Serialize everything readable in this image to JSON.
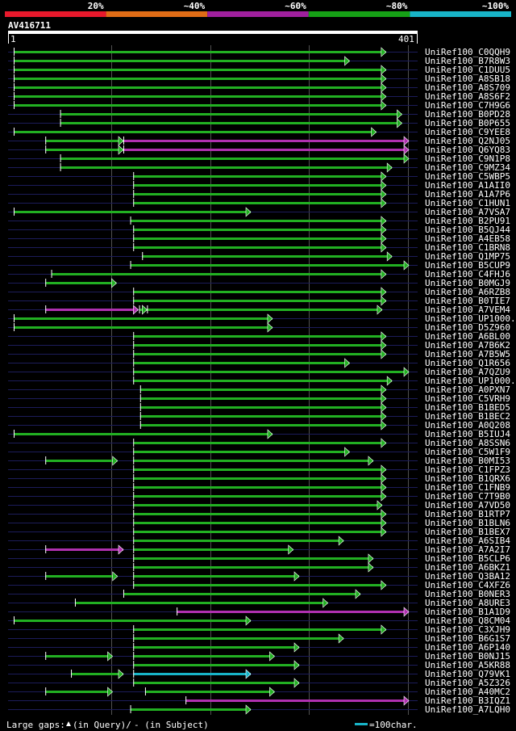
{
  "chart_data": {
    "type": "alignment-overview",
    "query_name": "AV416711",
    "query_start": "1",
    "query_end": "401",
    "query_length": 401,
    "identity_scale": [
      {
        "label": "20%",
        "color": "#e8192c"
      },
      {
        "label": "~40%",
        "color": "#e06c16"
      },
      {
        "label": "~60%",
        "color": "#a0209e"
      },
      {
        "label": "~80%",
        "color": "#16a016"
      },
      {
        "label": "~100%",
        "color": "#18b4c8"
      }
    ],
    "hits": [
      {
        "name": "UniRef100_C0QQH9",
        "segments": [
          [
            1,
            378,
            "green"
          ]
        ]
      },
      {
        "name": "UniRef100_B7R8W3",
        "segments": [
          [
            1,
            341,
            "green"
          ]
        ]
      },
      {
        "name": "UniRef100_C1DUU5",
        "segments": [
          [
            1,
            378,
            "green"
          ]
        ]
      },
      {
        "name": "UniRef100_A8SB18",
        "segments": [
          [
            1,
            378,
            "green"
          ]
        ]
      },
      {
        "name": "UniRef100_A8S709",
        "segments": [
          [
            1,
            378,
            "green"
          ]
        ]
      },
      {
        "name": "UniRef100_A8S6F2",
        "segments": [
          [
            1,
            378,
            "green"
          ]
        ]
      },
      {
        "name": "UniRef100_C7H9G6",
        "segments": [
          [
            1,
            378,
            "green"
          ]
        ]
      },
      {
        "name": "UniRef100_B0PD28",
        "segments": [
          [
            48,
            394,
            "green"
          ]
        ]
      },
      {
        "name": "UniRef100_B0P655",
        "segments": [
          [
            48,
            394,
            "green"
          ]
        ]
      },
      {
        "name": "UniRef100_C9YEE8",
        "segments": [
          [
            1,
            368,
            "green"
          ]
        ]
      },
      {
        "name": "UniRef100_Q2NJ05",
        "segments": [
          [
            33,
            112,
            "green"
          ],
          [
            112,
            401,
            "purple"
          ]
        ]
      },
      {
        "name": "UniRef100_Q6YQ83",
        "segments": [
          [
            33,
            112,
            "green"
          ],
          [
            112,
            401,
            "purple"
          ]
        ]
      },
      {
        "name": "UniRef100_C9N1P8",
        "segments": [
          [
            48,
            401,
            "green"
          ]
        ]
      },
      {
        "name": "UniRef100_C9MZ34",
        "segments": [
          [
            48,
            384,
            "green"
          ]
        ]
      },
      {
        "name": "UniRef100_C5WBP5",
        "segments": [
          [
            122,
            378,
            "green"
          ]
        ]
      },
      {
        "name": "UniRef100_A1AII0",
        "segments": [
          [
            122,
            378,
            "green"
          ]
        ]
      },
      {
        "name": "UniRef100_A1A7P6",
        "segments": [
          [
            122,
            378,
            "green"
          ]
        ]
      },
      {
        "name": "UniRef100_C1HUN1",
        "segments": [
          [
            122,
            378,
            "green"
          ]
        ]
      },
      {
        "name": "UniRef100_A7VSA7",
        "segments": [
          [
            1,
            241,
            "green"
          ]
        ]
      },
      {
        "name": "UniRef100_B2PU91",
        "segments": [
          [
            119,
            378,
            "green"
          ]
        ]
      },
      {
        "name": "UniRef100_B5QJ44",
        "segments": [
          [
            122,
            378,
            "green"
          ]
        ]
      },
      {
        "name": "UniRef100_A4EB58",
        "segments": [
          [
            122,
            378,
            "green"
          ]
        ]
      },
      {
        "name": "UniRef100_C1BRN8",
        "segments": [
          [
            122,
            378,
            "green"
          ]
        ]
      },
      {
        "name": "UniRef100_Q1MP75",
        "segments": [
          [
            131,
            384,
            "green"
          ]
        ]
      },
      {
        "name": "UniRef100_B5CUP9",
        "segments": [
          [
            119,
            401,
            "green"
          ]
        ]
      },
      {
        "name": "UniRef100_C4FHJ6",
        "segments": [
          [
            39,
            378,
            "green"
          ]
        ]
      },
      {
        "name": "UniRef100_B0MGJ9",
        "segments": [
          [
            33,
            105,
            "green"
          ]
        ]
      },
      {
        "name": "UniRef100_A6RZB8",
        "segments": [
          [
            122,
            378,
            "green"
          ]
        ]
      },
      {
        "name": "UniRef100_B0TIE7",
        "segments": [
          [
            122,
            378,
            "green"
          ]
        ]
      },
      {
        "name": "UniRef100_A7VEM4",
        "segments": [
          [
            33,
            127,
            "purple"
          ],
          [
            128,
            136,
            "green"
          ],
          [
            136,
            374,
            "green"
          ]
        ]
      },
      {
        "name": "UniRef100_UP1000..",
        "segments": [
          [
            1,
            263,
            "green"
          ]
        ]
      },
      {
        "name": "UniRef100_D5Z960",
        "segments": [
          [
            1,
            263,
            "green"
          ]
        ]
      },
      {
        "name": "UniRef100_A6BL00",
        "segments": [
          [
            122,
            378,
            "green"
          ]
        ]
      },
      {
        "name": "UniRef100_A7B6K2",
        "segments": [
          [
            122,
            378,
            "green"
          ]
        ]
      },
      {
        "name": "UniRef100_A7B5W5",
        "segments": [
          [
            122,
            378,
            "green"
          ]
        ]
      },
      {
        "name": "UniRef100_Q1R656",
        "segments": [
          [
            122,
            341,
            "green"
          ]
        ]
      },
      {
        "name": "UniRef100_A7QZU9",
        "segments": [
          [
            122,
            401,
            "green"
          ]
        ]
      },
      {
        "name": "UniRef100_UP1000..",
        "segments": [
          [
            122,
            384,
            "green"
          ]
        ]
      },
      {
        "name": "UniRef100_A0PXN7",
        "segments": [
          [
            129,
            378,
            "green"
          ]
        ]
      },
      {
        "name": "UniRef100_C5VRH9",
        "segments": [
          [
            129,
            378,
            "green"
          ]
        ]
      },
      {
        "name": "UniRef100_B1BED5",
        "segments": [
          [
            129,
            378,
            "green"
          ]
        ]
      },
      {
        "name": "UniRef100_B1BEC2",
        "segments": [
          [
            129,
            378,
            "green"
          ]
        ]
      },
      {
        "name": "UniRef100_A0Q208",
        "segments": [
          [
            129,
            378,
            "green"
          ]
        ]
      },
      {
        "name": "UniRef100_B5IUJ4",
        "segments": [
          [
            1,
            263,
            "green"
          ]
        ]
      },
      {
        "name": "UniRef100_A8SSN6",
        "segments": [
          [
            122,
            378,
            "green"
          ]
        ]
      },
      {
        "name": "UniRef100_C5W1F9",
        "segments": [
          [
            122,
            341,
            "green"
          ]
        ]
      },
      {
        "name": "UniRef100_B0MI53",
        "segments": [
          [
            33,
            106,
            "green"
          ],
          [
            122,
            365,
            "green"
          ]
        ]
      },
      {
        "name": "UniRef100_C1FPZ3",
        "segments": [
          [
            122,
            378,
            "green"
          ]
        ]
      },
      {
        "name": "UniRef100_B1QRX6",
        "segments": [
          [
            122,
            378,
            "green"
          ]
        ]
      },
      {
        "name": "UniRef100_C1FNB9",
        "segments": [
          [
            122,
            378,
            "green"
          ]
        ]
      },
      {
        "name": "UniRef100_C7T9B0",
        "segments": [
          [
            122,
            378,
            "green"
          ]
        ]
      },
      {
        "name": "UniRef100_A7VD50",
        "segments": [
          [
            122,
            374,
            "green"
          ]
        ]
      },
      {
        "name": "UniRef100_B1RTP7",
        "segments": [
          [
            122,
            378,
            "green"
          ]
        ]
      },
      {
        "name": "UniRef100_B1BLN6",
        "segments": [
          [
            122,
            378,
            "green"
          ]
        ]
      },
      {
        "name": "UniRef100_B1BEX7",
        "segments": [
          [
            122,
            378,
            "green"
          ]
        ]
      },
      {
        "name": "UniRef100_A6SIB4",
        "segments": [
          [
            122,
            335,
            "green"
          ]
        ]
      },
      {
        "name": "UniRef100_A7A2I7",
        "segments": [
          [
            33,
            112,
            "purple"
          ],
          [
            122,
            284,
            "green"
          ]
        ]
      },
      {
        "name": "UniRef100_B5CLP6",
        "segments": [
          [
            122,
            365,
            "green"
          ]
        ]
      },
      {
        "name": "UniRef100_A6BKZ1",
        "segments": [
          [
            122,
            365,
            "green"
          ]
        ]
      },
      {
        "name": "UniRef100_Q3BA12",
        "segments": [
          [
            33,
            106,
            "green"
          ],
          [
            122,
            290,
            "green"
          ]
        ]
      },
      {
        "name": "UniRef100_C4XFZ6",
        "segments": [
          [
            122,
            378,
            "green"
          ]
        ]
      },
      {
        "name": "UniRef100_B0NER3",
        "segments": [
          [
            112,
            352,
            "green"
          ]
        ]
      },
      {
        "name": "UniRef100_A8URE3",
        "segments": [
          [
            63,
            319,
            "green"
          ]
        ]
      },
      {
        "name": "UniRef100_B1A1D9",
        "segments": [
          [
            166,
            401,
            "purple"
          ]
        ]
      },
      {
        "name": "UniRef100_Q8CM04",
        "segments": [
          [
            1,
            241,
            "green"
          ]
        ]
      },
      {
        "name": "UniRef100_C3XJH9",
        "segments": [
          [
            122,
            378,
            "green"
          ]
        ]
      },
      {
        "name": "UniRef100_B6G1S7",
        "segments": [
          [
            122,
            335,
            "green"
          ]
        ]
      },
      {
        "name": "UniRef100_A6P140",
        "segments": [
          [
            122,
            290,
            "green"
          ]
        ]
      },
      {
        "name": "UniRef100_B0NJ15",
        "segments": [
          [
            33,
            101,
            "green"
          ],
          [
            122,
            265,
            "green"
          ]
        ]
      },
      {
        "name": "UniRef100_A5KR88",
        "segments": [
          [
            122,
            290,
            "green"
          ]
        ]
      },
      {
        "name": "UniRef100_Q79VK1",
        "segments": [
          [
            59,
            112,
            "green"
          ],
          [
            122,
            241,
            "cyan"
          ]
        ]
      },
      {
        "name": "UniRef100_A5Z326",
        "segments": [
          [
            122,
            290,
            "green"
          ]
        ]
      },
      {
        "name": "UniRef100_A40MC2",
        "segments": [
          [
            33,
            101,
            "green"
          ],
          [
            134,
            265,
            "green"
          ]
        ]
      },
      {
        "name": "UniRef100_B3IQZ1",
        "segments": [
          [
            175,
            401,
            "purple"
          ]
        ]
      },
      {
        "name": "UniRef100_A7LQH0",
        "segments": [
          [
            119,
            241,
            "green"
          ]
        ]
      }
    ],
    "legend_gaps": "Large gaps:",
    "legend_in_query": "(in Query)/",
    "legend_in_subject": "- (in Subject)",
    "scale_bar_label": "=100char."
  }
}
